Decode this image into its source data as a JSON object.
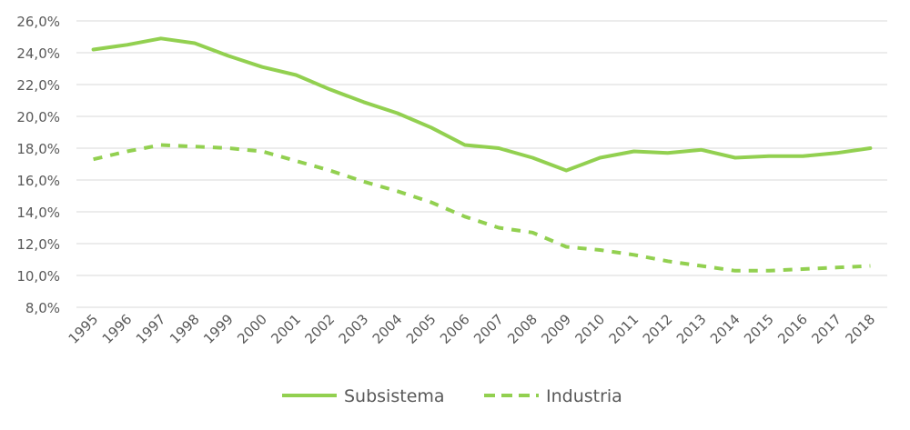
{
  "chart_data": {
    "type": "line",
    "title": "",
    "xlabel": "",
    "ylabel": "",
    "ylim": [
      8,
      26
    ],
    "y_ticks": [
      "8,0%",
      "10,0%",
      "12,0%",
      "14,0%",
      "16,0%",
      "18,0%",
      "20,0%",
      "22,0%",
      "24,0%",
      "26,0%"
    ],
    "grid": true,
    "legend_position": "bottom",
    "categories": [
      "1995",
      "1996",
      "1997",
      "1998",
      "1999",
      "2000",
      "2001",
      "2002",
      "2003",
      "2004",
      "2005",
      "2006",
      "2007",
      "2008",
      "2009",
      "2010",
      "2011",
      "2012",
      "2013",
      "2014",
      "2015",
      "2016",
      "2017",
      "2018"
    ],
    "series": [
      {
        "name": "Subsistema",
        "style": "solid",
        "color": "#92D050",
        "values": [
          24.2,
          24.5,
          24.9,
          24.6,
          23.8,
          23.1,
          22.6,
          21.7,
          20.9,
          20.2,
          19.3,
          18.2,
          18.0,
          17.4,
          16.6,
          17.4,
          17.8,
          17.7,
          17.9,
          17.4,
          17.5,
          17.5,
          17.7,
          18.0
        ]
      },
      {
        "name": "Industria",
        "style": "dashed",
        "color": "#92D050",
        "values": [
          17.3,
          17.8,
          18.2,
          18.1,
          18.0,
          17.8,
          17.2,
          16.6,
          15.9,
          15.3,
          14.6,
          13.7,
          13.0,
          12.7,
          11.8,
          11.6,
          11.3,
          10.9,
          10.6,
          10.3,
          10.3,
          10.4,
          10.5,
          10.6
        ]
      }
    ]
  }
}
